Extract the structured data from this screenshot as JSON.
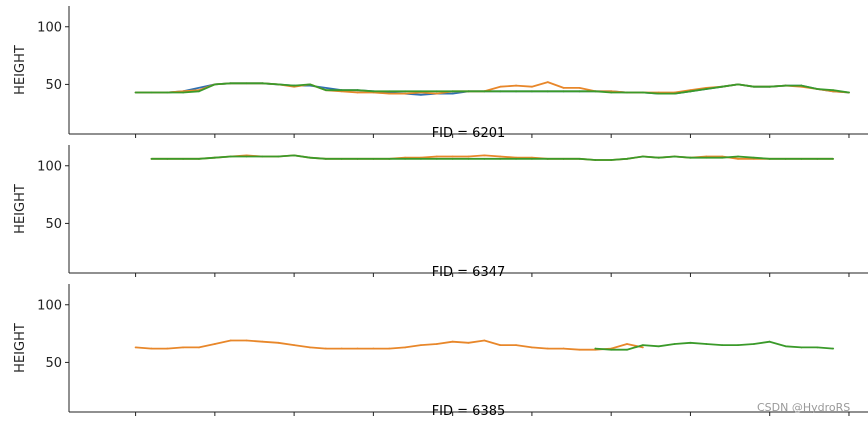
{
  "watermark": "CSDN @HydroRS",
  "colors": {
    "orange": "#e8872a",
    "green": "#3a9a2a",
    "blue": "#2f6fb0",
    "axis": "#222222"
  },
  "chart_data": [
    {
      "type": "line",
      "title": "FID = 6201",
      "xlabel": "",
      "ylabel": "HEIGHT",
      "xlim": [
        -4.2,
        46.2
      ],
      "ylim": [
        7,
        118
      ],
      "yticks": [
        50,
        100
      ],
      "xticks": [
        0,
        5,
        10,
        15,
        20,
        25,
        30,
        35,
        40,
        45
      ],
      "grid": false,
      "legend": "none",
      "series": [
        {
          "color": "#2f6fb0",
          "x": [
            0,
            2,
            3,
            5,
            6,
            8,
            10,
            11,
            13,
            14,
            15,
            18,
            19,
            20,
            21,
            22,
            23,
            24,
            25,
            26,
            27,
            28,
            29,
            30,
            31,
            32,
            33,
            34,
            35,
            36,
            37,
            38,
            39,
            40,
            41,
            42,
            43,
            44,
            45
          ],
          "y": [
            43,
            43,
            44,
            50,
            51,
            51,
            49,
            49,
            45,
            45,
            44,
            41,
            42,
            42,
            44,
            44,
            44,
            44,
            44,
            44,
            44,
            44,
            44,
            44,
            43,
            43,
            42,
            42,
            44,
            46,
            48,
            50,
            48,
            48,
            49,
            49,
            46,
            44,
            43
          ]
        },
        {
          "color": "#e8872a",
          "x": [
            0,
            1,
            2,
            3,
            4,
            5,
            6,
            7,
            8,
            9,
            10,
            11,
            12,
            13,
            14,
            15,
            16,
            17,
            18,
            19,
            20,
            21,
            22,
            23,
            24,
            25,
            26,
            27,
            28,
            29,
            30,
            31,
            32,
            33,
            34,
            35,
            36,
            37,
            38,
            39,
            40,
            41,
            42,
            43,
            44,
            45
          ],
          "y": [
            43,
            43,
            43,
            44,
            45,
            50,
            51,
            51,
            51,
            50,
            48,
            50,
            45,
            44,
            43,
            43,
            42,
            42,
            43,
            42,
            44,
            44,
            44,
            48,
            49,
            48,
            52,
            47,
            47,
            44,
            44,
            43,
            43,
            43,
            43,
            45,
            47,
            48,
            50,
            48,
            48,
            49,
            48,
            46,
            44,
            43
          ]
        },
        {
          "color": "#3a9a2a",
          "x": [
            0,
            1,
            2,
            3,
            4,
            5,
            6,
            7,
            8,
            9,
            10,
            11,
            12,
            13,
            14,
            15,
            16,
            17,
            18,
            19,
            20,
            21,
            22,
            23,
            24,
            25,
            26,
            27,
            28,
            29,
            30,
            31,
            32,
            33,
            34,
            35,
            36,
            37,
            38,
            39,
            40,
            41,
            42,
            43,
            44,
            45
          ],
          "y": [
            43,
            43,
            43,
            43,
            44,
            50,
            51,
            51,
            51,
            50,
            49,
            50,
            45,
            45,
            45,
            44,
            44,
            44,
            44,
            44,
            44,
            44,
            44,
            44,
            44,
            44,
            44,
            44,
            44,
            44,
            43,
            43,
            43,
            42,
            42,
            44,
            46,
            48,
            50,
            48,
            48,
            49,
            49,
            46,
            45,
            43
          ]
        }
      ]
    },
    {
      "type": "line",
      "title": "FID = 6347",
      "xlabel": "",
      "ylabel": "HEIGHT",
      "xlim": [
        -4.2,
        46.2
      ],
      "ylim": [
        7,
        118
      ],
      "yticks": [
        50,
        100
      ],
      "xticks": [
        0,
        5,
        10,
        15,
        20,
        25,
        30,
        35,
        40,
        45
      ],
      "grid": false,
      "legend": "none",
      "series": [
        {
          "color": "#e8872a",
          "x": [
            1,
            2,
            3,
            4,
            5,
            6,
            7,
            8,
            9,
            10,
            11,
            12,
            13,
            14,
            15,
            16,
            17,
            18,
            19,
            20,
            21,
            22,
            23,
            24,
            25,
            26,
            27,
            28,
            29,
            30,
            31,
            32,
            33,
            34,
            35,
            36,
            37,
            38,
            39,
            40,
            41,
            42,
            43,
            44
          ],
          "y": [
            106,
            106,
            106,
            106,
            107,
            108,
            109,
            108,
            108,
            109,
            107,
            106,
            106,
            106,
            106,
            106,
            107,
            107,
            108,
            108,
            108,
            109,
            108,
            107,
            107,
            106,
            106,
            106,
            105,
            105,
            106,
            108,
            107,
            108,
            107,
            108,
            108,
            106,
            106,
            106,
            106,
            106,
            106,
            106
          ]
        },
        {
          "color": "#3a9a2a",
          "x": [
            1,
            2,
            3,
            4,
            5,
            6,
            7,
            8,
            9,
            10,
            11,
            12,
            13,
            14,
            15,
            16,
            17,
            18,
            19,
            20,
            21,
            22,
            23,
            24,
            25,
            26,
            27,
            28,
            29,
            30,
            31,
            32,
            33,
            34,
            35,
            36,
            37,
            38,
            39,
            40,
            41,
            42,
            43,
            44
          ],
          "y": [
            106,
            106,
            106,
            106,
            107,
            108,
            108,
            108,
            108,
            109,
            107,
            106,
            106,
            106,
            106,
            106,
            106,
            106,
            106,
            106,
            106,
            106,
            106,
            106,
            106,
            106,
            106,
            106,
            105,
            105,
            106,
            108,
            107,
            108,
            107,
            107,
            107,
            108,
            107,
            106,
            106,
            106,
            106,
            106
          ]
        }
      ]
    },
    {
      "type": "line",
      "title": "FID = 6385",
      "xlabel": "",
      "ylabel": "HEIGHT",
      "xlim": [
        -4.2,
        46.2
      ],
      "ylim": [
        7,
        118
      ],
      "yticks": [
        50,
        100
      ],
      "xticks": [
        0,
        5,
        10,
        15,
        20,
        25,
        30,
        35,
        40,
        45
      ],
      "grid": false,
      "legend": "none",
      "series": [
        {
          "color": "#e8872a",
          "x": [
            0,
            1,
            2,
            3,
            4,
            5,
            6,
            7,
            8,
            9,
            10,
            11,
            12,
            13,
            14,
            15,
            16,
            17,
            18,
            19,
            20,
            21,
            22,
            23,
            24,
            25,
            26,
            27,
            28,
            29,
            30,
            31,
            32
          ],
          "y": [
            63,
            62,
            62,
            63,
            63,
            66,
            69,
            69,
            68,
            67,
            65,
            63,
            62,
            62,
            62,
            62,
            62,
            63,
            65,
            66,
            68,
            67,
            69,
            65,
            65,
            63,
            62,
            62,
            61,
            61,
            62,
            66,
            63
          ]
        },
        {
          "color": "#3a9a2a",
          "x": [
            29,
            30,
            31,
            32,
            33,
            34,
            35,
            36,
            37,
            38,
            39,
            40,
            41,
            42,
            43,
            44
          ],
          "y": [
            62,
            61,
            61,
            65,
            64,
            66,
            67,
            66,
            65,
            65,
            66,
            68,
            64,
            63,
            63,
            62
          ]
        }
      ]
    }
  ]
}
